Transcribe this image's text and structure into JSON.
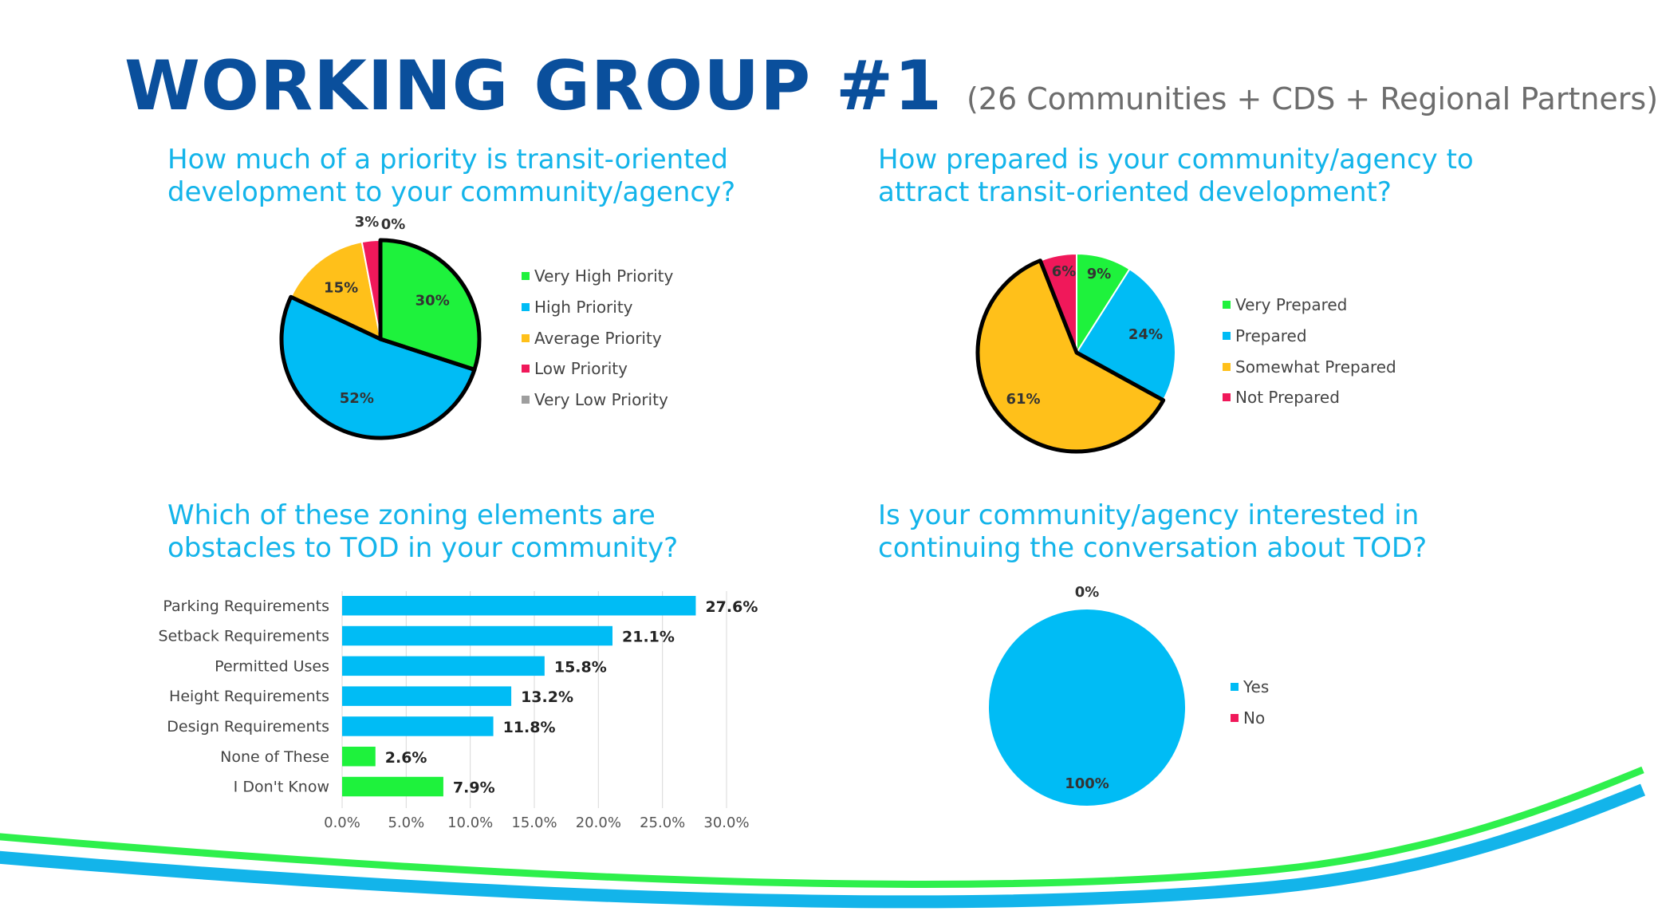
{
  "header": {
    "title": "WORKING GROUP #1",
    "subtitle": "(26 Communities + CDS + Regional Partners)"
  },
  "colors": {
    "title": "#0a4f9c",
    "question": "#13b4ea",
    "green": "#1ef23c",
    "blue": "#00bcf5",
    "orange": "#ffc01a",
    "red": "#f0185a",
    "gray": "#9e9e9e"
  },
  "questions": {
    "q1": [
      "How much of a priority is transit-oriented",
      "development to your community/agency?"
    ],
    "q2": [
      "How prepared is your community/agency to",
      "attract transit-oriented development?"
    ],
    "q3": [
      "Which of these zoning elements are",
      "obstacles to TOD in your community?"
    ],
    "q4": [
      "Is your community/agency interested in",
      "continuing the conversation about TOD?"
    ]
  },
  "chart_data": [
    {
      "id": "priority",
      "type": "pie",
      "labels": [
        "Very High Priority",
        "High Priority",
        "Average Priority",
        "Low Priority",
        "Very Low Priority"
      ],
      "values": [
        30,
        52,
        15,
        3,
        0
      ],
      "data_labels": [
        "30%",
        "52%",
        "15%",
        "3%",
        "0%"
      ],
      "colors": [
        "#1ef23c",
        "#00bcf5",
        "#ffc01a",
        "#f0185a",
        "#9e9e9e"
      ],
      "highlighted": [
        "Very High Priority",
        "High Priority"
      ],
      "legend_position": "right"
    },
    {
      "id": "prepared",
      "type": "pie",
      "labels": [
        "Very Prepared",
        "Prepared",
        "Somewhat Prepared",
        "Not Prepared"
      ],
      "values": [
        9,
        24,
        61,
        6
      ],
      "data_labels": [
        "9%",
        "24%",
        "61%",
        "6%"
      ],
      "colors": [
        "#1ef23c",
        "#00bcf5",
        "#ffc01a",
        "#f0185a"
      ],
      "highlighted": [
        "Somewhat Prepared"
      ],
      "legend_position": "right"
    },
    {
      "id": "zoning",
      "type": "bar",
      "orientation": "horizontal",
      "categories": [
        "Parking Requirements",
        "Setback Requirements",
        "Permitted Uses",
        "Height Requirements",
        "Design Requirements",
        "None of These",
        "I Don't Know"
      ],
      "values": [
        27.6,
        21.1,
        15.8,
        13.2,
        11.8,
        2.6,
        7.9
      ],
      "data_labels": [
        "27.6%",
        "21.1%",
        "15.8%",
        "13.2%",
        "11.8%",
        "2.6%",
        "7.9%"
      ],
      "bar_colors": [
        "#00bcf5",
        "#00bcf5",
        "#00bcf5",
        "#00bcf5",
        "#00bcf5",
        "#1ef23c",
        "#1ef23c"
      ],
      "xlim": [
        0,
        30
      ],
      "xticks": [
        "0.0%",
        "5.0%",
        "10.0%",
        "15.0%",
        "20.0%",
        "25.0%",
        "30.0%"
      ],
      "grid": true
    },
    {
      "id": "continue",
      "type": "pie",
      "labels": [
        "Yes",
        "No"
      ],
      "values": [
        100,
        0
      ],
      "data_labels": [
        "100%",
        "0%"
      ],
      "colors": [
        "#00bcf5",
        "#f0185a"
      ],
      "legend_position": "right"
    }
  ]
}
